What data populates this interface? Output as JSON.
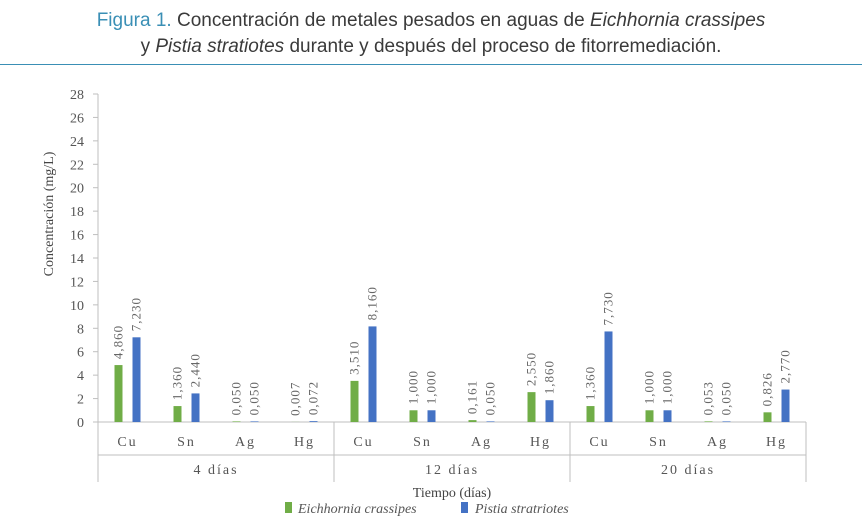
{
  "figure": {
    "label": "Figura 1.",
    "line1_pre": "Concentración de metales pesados en aguas de ",
    "line1_species": "Eichhornia crassipes",
    "line2_y": "y ",
    "line2_species": "Pistia stratiotes",
    "line2_post": " durante y después del proceso de fitorremediación."
  },
  "chart_data": {
    "type": "bar",
    "xlabel": "Tiempo (días)",
    "ylabel": "Concentración (mg/L)",
    "ylim": [
      0,
      28
    ],
    "yticks": [
      "0",
      "2",
      "4",
      "6",
      "8",
      "10",
      "12",
      "14",
      "16",
      "18",
      "20",
      "22",
      "24",
      "26",
      "28"
    ],
    "groups": [
      {
        "label": "4 días",
        "categories": [
          "Cu",
          "Sn",
          "Ag",
          "Hg"
        ]
      },
      {
        "label": "12 días",
        "categories": [
          "Cu",
          "Sn",
          "Ag",
          "Hg"
        ]
      },
      {
        "label": "20 días",
        "categories": [
          "Cu",
          "Sn",
          "Ag",
          "Hg"
        ]
      }
    ],
    "series": [
      {
        "name": "Eichhornia crassipes",
        "color": "#70ad47",
        "values": [
          4.86,
          1.36,
          0.05,
          0.007,
          3.51,
          1.0,
          0.161,
          2.55,
          1.36,
          1.0,
          0.053,
          0.826
        ],
        "labels": [
          "4,860",
          "1,360",
          "0,050",
          "0,007",
          "3,510",
          "1,000",
          "0,161",
          "2,550",
          "1,360",
          "1,000",
          "0,053",
          "0,826"
        ]
      },
      {
        "name": "Pistia stratriotes",
        "color": "#4472c4",
        "values": [
          7.23,
          2.44,
          0.05,
          0.072,
          8.16,
          1.0,
          0.05,
          1.86,
          7.73,
          1.0,
          0.05,
          2.77
        ],
        "labels": [
          "7,230",
          "2,440",
          "0,050",
          "0,072",
          "8,160",
          "1,000",
          "0,050",
          "1,860",
          "7,730",
          "1,000",
          "0,050",
          "2,770"
        ]
      }
    ],
    "legend": "bottom",
    "grid": false
  }
}
